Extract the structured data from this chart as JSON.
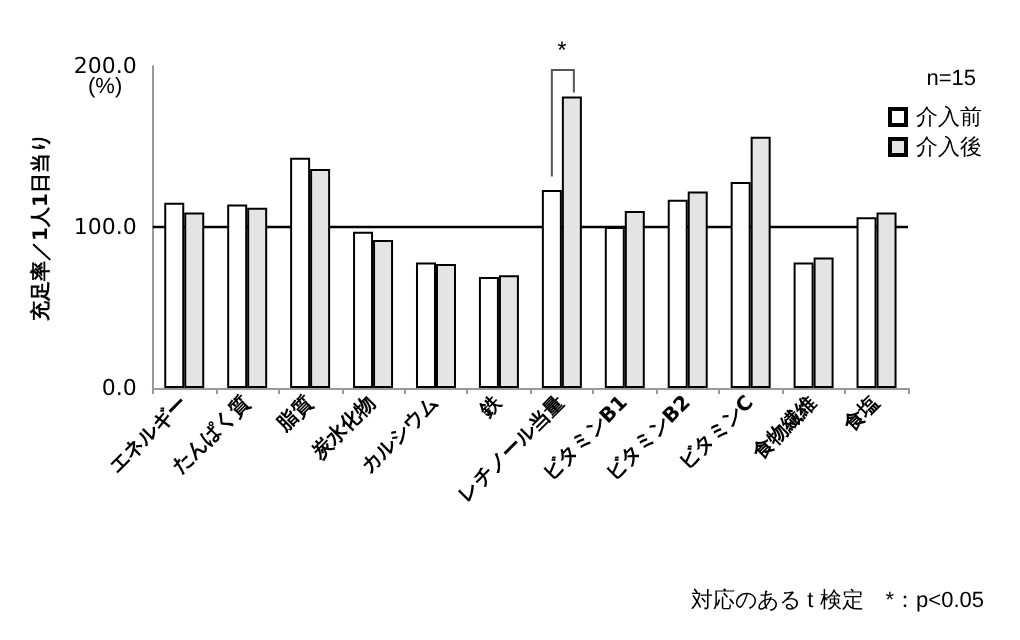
{
  "chart_data": {
    "type": "bar",
    "ylabel": "充足率／1人1日当り",
    "categories": [
      "エネルギー",
      "たんぱく質",
      "脂質",
      "炭水化物",
      "カルシウム",
      "鉄",
      "レチノール当量",
      "ビタミンB1",
      "ビタミンB2",
      "ビタミンC",
      "食物繊維",
      "食塩"
    ],
    "series": [
      {
        "name": "介入前",
        "color": "#ffffff",
        "values": [
          115,
          114,
          143,
          97,
          78,
          69,
          123,
          100,
          117,
          128,
          78,
          106
        ]
      },
      {
        "name": "介入後",
        "color": "#e4e4e4",
        "values": [
          109,
          112,
          136,
          92,
          77,
          70,
          181,
          110,
          122,
          156,
          81,
          109
        ]
      }
    ],
    "ylim": [
      0,
      200
    ],
    "yticks": [
      {
        "value": 0,
        "label": "0.0"
      },
      {
        "value": 100,
        "label": "100.0"
      },
      {
        "value": 200,
        "label": "200.0"
      }
    ],
    "ref_lines": [
      {
        "axis": "y",
        "value": 100,
        "color": "#000000"
      }
    ],
    "legend": "top right",
    "grid": false,
    "annotations": [
      "(%)",
      "n=15",
      "*",
      "対応のある t 検定　*：p<0.05"
    ]
  }
}
